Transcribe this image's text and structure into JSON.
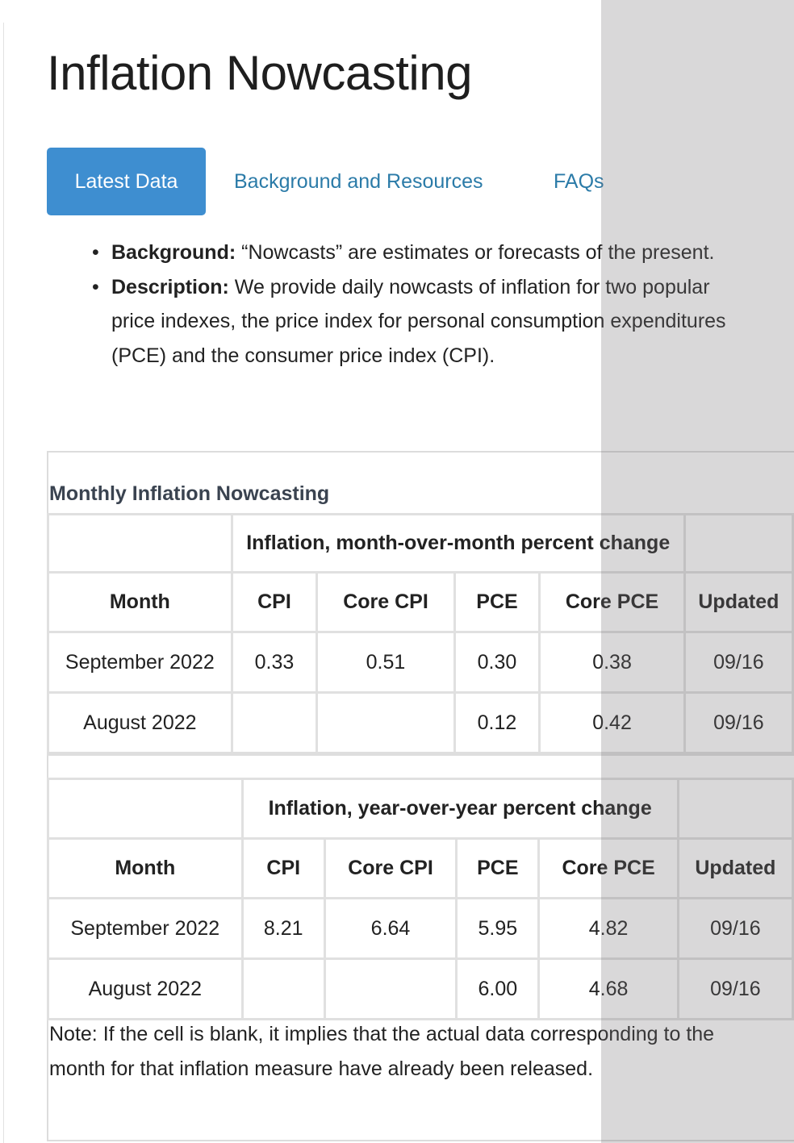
{
  "page": {
    "title": "Inflation Nowcasting"
  },
  "tabs": [
    {
      "label": "Latest Data",
      "active": true
    },
    {
      "label": "Background and Resources",
      "active": false
    },
    {
      "label": "FAQs",
      "active": false
    }
  ],
  "intro": [
    {
      "term": "Background:",
      "text": " “Nowcasts” are estimates or forecasts of the present."
    },
    {
      "term": "Description:",
      "text": " We provide daily nowcasts of inflation for two popular price indexes, the price index for personal consumption expenditures (PCE) and the consumer price index (CPI)."
    }
  ],
  "section_title": "Monthly Inflation Nowcasting",
  "monthly": {
    "group_header": "Inflation, month-over-month percent change",
    "columns": [
      "Month",
      "CPI",
      "Core CPI",
      "PCE",
      "Core PCE",
      "Updated"
    ],
    "rows": [
      [
        "September 2022",
        "0.33",
        "0.51",
        "0.30",
        "0.38",
        "09/16"
      ],
      [
        "August 2022",
        "",
        "",
        "0.12",
        "0.42",
        "09/16"
      ]
    ]
  },
  "yearly": {
    "group_header": "Inflation, year-over-year percent change",
    "columns": [
      "Month",
      "CPI",
      "Core CPI",
      "PCE",
      "Core PCE",
      "Updated"
    ],
    "rows": [
      [
        "September 2022",
        "8.21",
        "6.64",
        "5.95",
        "4.82",
        "09/16"
      ],
      [
        "August 2022",
        "",
        "",
        "6.00",
        "4.68",
        "09/16"
      ]
    ]
  },
  "note": "Note: If the cell is blank, it implies that the actual data corresponding to the month for that inflation measure have already been released."
}
